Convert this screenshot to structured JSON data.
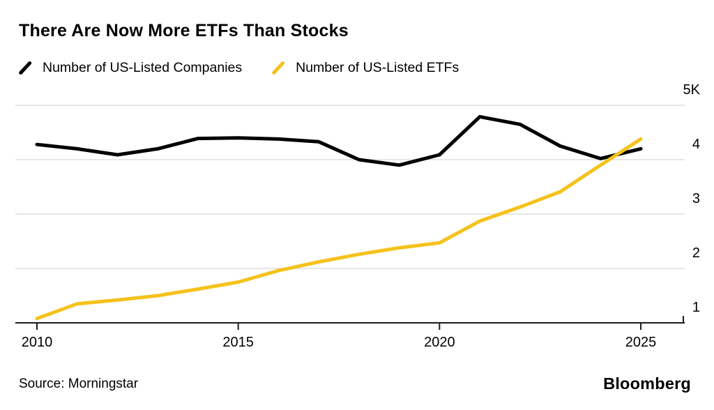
{
  "header": {
    "title": "There Are Now More ETFs Than Stocks"
  },
  "legend": {
    "items": [
      {
        "label": "Number of US-Listed Companies",
        "color": "#000000"
      },
      {
        "label": "Number of US-Listed ETFs",
        "color": "#F5C21B"
      }
    ]
  },
  "footer": {
    "source": "Source: Morningstar",
    "brand": "Bloomberg"
  },
  "colors": {
    "companies_line": "#000000",
    "etfs_line": "#F5C21B",
    "gridline": "#DDDDDD",
    "axis": "#1A1A1A",
    "text": "#000000"
  },
  "chart_data": {
    "type": "line",
    "title": "There Are Now More ETFs Than Stocks",
    "xlabel": "",
    "ylabel": "",
    "x": [
      2010,
      2011,
      2012,
      2013,
      2014,
      2015,
      2016,
      2017,
      2018,
      2019,
      2020,
      2021,
      2022,
      2023,
      2024,
      2025
    ],
    "series": [
      {
        "name": "Number of US-Listed Companies",
        "color": "#000000",
        "unit": "thousands",
        "values": [
          4.28,
          4.2,
          4.09,
          4.2,
          4.39,
          4.4,
          4.38,
          4.33,
          4.0,
          3.9,
          4.09,
          4.79,
          4.65,
          4.25,
          4.02,
          4.2
        ]
      },
      {
        "name": "Number of US-Listed ETFs",
        "color": "#F5C21B",
        "unit": "thousands",
        "values": [
          1.08,
          1.35,
          1.42,
          1.5,
          1.62,
          1.75,
          1.96,
          2.12,
          2.26,
          2.38,
          2.47,
          2.87,
          3.13,
          3.41,
          3.9,
          4.38
        ]
      }
    ],
    "xlim": [
      2010,
      2025
    ],
    "ylim": [
      1,
      5
    ],
    "x_tick_values": [
      2010,
      2015,
      2020,
      2025
    ],
    "x_tick_labels": [
      "2010",
      "2015",
      "2020",
      "2025"
    ],
    "y_tick_values": [
      5,
      4,
      3,
      2,
      1
    ],
    "y_tick_labels": [
      "5K",
      "4",
      "3",
      "2",
      "1"
    ],
    "grid": "horizontal",
    "legend_position": "top"
  }
}
